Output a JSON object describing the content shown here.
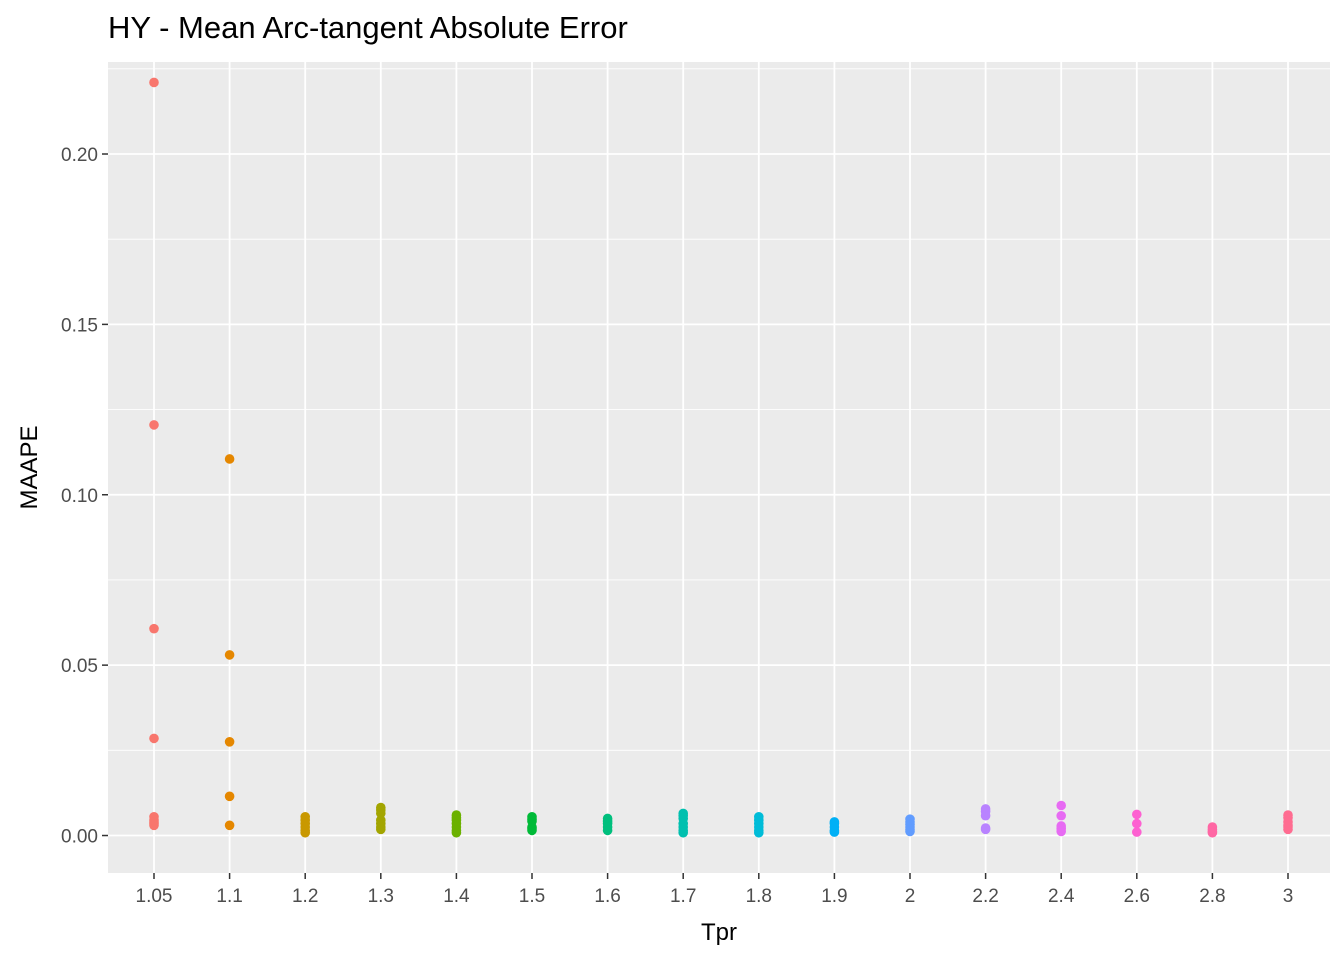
{
  "chart_data": {
    "type": "scatter",
    "title": "HY - Mean Arc-tangent Absolute Error",
    "xlabel": "Tpr",
    "ylabel": "MAAPE",
    "categories": [
      "1.05",
      "1.1",
      "1.2",
      "1.3",
      "1.4",
      "1.5",
      "1.6",
      "1.7",
      "1.8",
      "1.9",
      "2",
      "2.2",
      "2.4",
      "2.6",
      "2.8",
      "3"
    ],
    "colors": [
      "#F8766D",
      "#E58700",
      "#C99800",
      "#A3A500",
      "#6BB100",
      "#00BA38",
      "#00BF7D",
      "#00C0AF",
      "#00BCD8",
      "#00B0F6",
      "#619CFF",
      "#B983FF",
      "#E76BF3",
      "#FD61D1",
      "#FF67A4",
      "#FF6C91"
    ],
    "ylim": [
      -0.011,
      0.227
    ],
    "yticks": [
      0.0,
      0.05,
      0.1,
      0.15,
      0.2
    ],
    "ytick_labels": [
      "0.00",
      "0.05",
      "0.10",
      "0.15",
      "0.20"
    ],
    "grid": true,
    "legend": "none",
    "points": [
      [
        0.221,
        0.1205,
        0.0607,
        0.0285,
        0.0055,
        0.0045,
        0.004,
        0.0035,
        0.003
      ],
      [
        0.1105,
        0.053,
        0.0275,
        0.0115,
        0.003
      ],
      [
        0.0055,
        0.0045,
        0.0035,
        0.0025,
        0.0015,
        0.0008
      ],
      [
        0.0082,
        0.0075,
        0.0065,
        0.0045,
        0.0035,
        0.0025,
        0.0018
      ],
      [
        0.006,
        0.0052,
        0.0045,
        0.0035,
        0.0025,
        0.0015,
        0.0008
      ],
      [
        0.0055,
        0.0048,
        0.0042,
        0.0025,
        0.002,
        0.0015
      ],
      [
        0.005,
        0.0042,
        0.0035,
        0.0025,
        0.0015
      ],
      [
        0.0065,
        0.0058,
        0.005,
        0.0035,
        0.0025,
        0.0015,
        0.0008
      ],
      [
        0.0055,
        0.0045,
        0.0035,
        0.0025,
        0.0015,
        0.0008
      ],
      [
        0.004,
        0.0035,
        0.0025,
        0.0015,
        0.001
      ],
      [
        0.0048,
        0.004,
        0.0032,
        0.0025,
        0.0018,
        0.0012
      ],
      [
        0.0078,
        0.007,
        0.0058,
        0.0022,
        0.0018
      ],
      [
        0.0088,
        0.0058,
        0.0028,
        0.002,
        0.0012
      ],
      [
        0.0062,
        0.0035,
        0.001
      ],
      [
        0.0025,
        0.0018,
        0.0012,
        0.0008
      ],
      [
        0.006,
        0.0052,
        0.004,
        0.003,
        0.0025,
        0.0018
      ]
    ]
  }
}
